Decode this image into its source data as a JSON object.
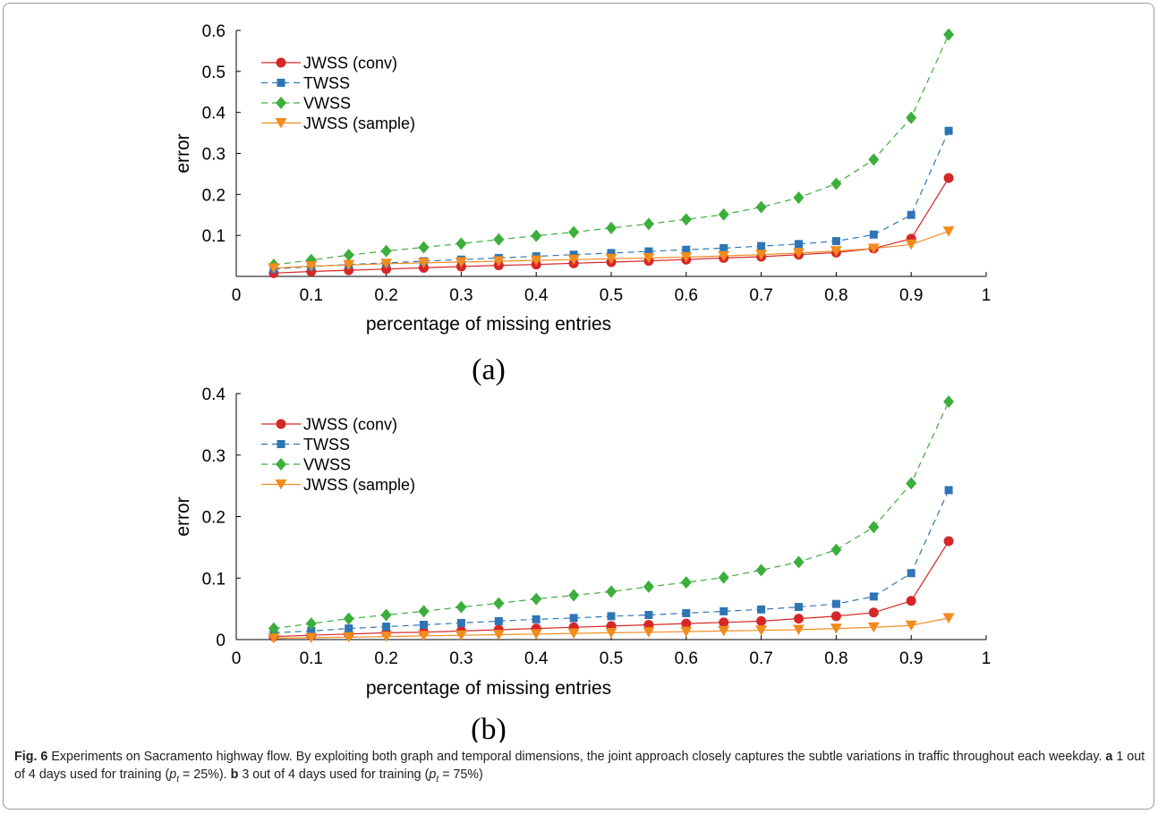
{
  "chart_data": [
    {
      "type": "line",
      "panel_label": "(a)",
      "xlabel": "percentage of missing entries",
      "ylabel": "error",
      "xlim": [
        0,
        1
      ],
      "ylim": [
        0,
        0.6
      ],
      "xticks": [
        "0",
        "0.1",
        "0.2",
        "0.3",
        "0.4",
        "0.5",
        "0.6",
        "0.7",
        "0.8",
        "0.9",
        "1"
      ],
      "yticks": [
        "0.1",
        "0.2",
        "0.3",
        "0.4",
        "0.5",
        "0.6"
      ],
      "grid": false,
      "legend_position": "top-left",
      "x": [
        0.05,
        0.1,
        0.15,
        0.2,
        0.25,
        0.3,
        0.35,
        0.4,
        0.45,
        0.5,
        0.55,
        0.6,
        0.65,
        0.7,
        0.75,
        0.8,
        0.85,
        0.9,
        0.95
      ],
      "series": [
        {
          "name": "JWSS (conv)",
          "color": "#d62728",
          "marker": "circle",
          "dash": "solid",
          "values": [
            0.008,
            0.012,
            0.015,
            0.018,
            0.021,
            0.024,
            0.027,
            0.029,
            0.032,
            0.035,
            0.038,
            0.041,
            0.045,
            0.048,
            0.053,
            0.058,
            0.068,
            0.092,
            0.24
          ]
        },
        {
          "name": "TWSS",
          "color": "#2e75b6",
          "marker": "square",
          "dash": "dashed",
          "values": [
            0.018,
            0.024,
            0.029,
            0.033,
            0.037,
            0.041,
            0.045,
            0.049,
            0.053,
            0.057,
            0.061,
            0.065,
            0.069,
            0.074,
            0.079,
            0.086,
            0.102,
            0.15,
            0.355
          ]
        },
        {
          "name": "VWSS",
          "color": "#3cae3c",
          "marker": "diamond",
          "dash": "dashed",
          "values": [
            0.028,
            0.04,
            0.052,
            0.062,
            0.071,
            0.08,
            0.09,
            0.099,
            0.108,
            0.118,
            0.128,
            0.139,
            0.151,
            0.169,
            0.192,
            0.226,
            0.285,
            0.387,
            0.59
          ]
        },
        {
          "name": "JWSS (sample)",
          "color": "#f28c1e",
          "marker": "triangle-down",
          "dash": "solid",
          "values": [
            0.02,
            0.025,
            0.028,
            0.031,
            0.033,
            0.035,
            0.037,
            0.039,
            0.041,
            0.043,
            0.045,
            0.047,
            0.05,
            0.053,
            0.057,
            0.062,
            0.068,
            0.078,
            0.11
          ]
        }
      ]
    },
    {
      "type": "line",
      "panel_label": "(b)",
      "xlabel": "percentage of missing entries",
      "ylabel": "error",
      "xlim": [
        0,
        1
      ],
      "ylim": [
        0,
        0.4
      ],
      "xticks": [
        "0",
        "0.1",
        "0.2",
        "0.3",
        "0.4",
        "0.5",
        "0.6",
        "0.7",
        "0.8",
        "0.9",
        "1"
      ],
      "yticks": [
        "0",
        "0.1",
        "0.2",
        "0.3",
        "0.4"
      ],
      "grid": false,
      "legend_position": "top-left",
      "x": [
        0.05,
        0.1,
        0.15,
        0.2,
        0.25,
        0.3,
        0.35,
        0.4,
        0.45,
        0.5,
        0.55,
        0.6,
        0.65,
        0.7,
        0.75,
        0.8,
        0.85,
        0.9,
        0.95
      ],
      "series": [
        {
          "name": "JWSS (conv)",
          "color": "#d62728",
          "marker": "circle",
          "dash": "solid",
          "values": [
            0.005,
            0.007,
            0.009,
            0.011,
            0.012,
            0.014,
            0.016,
            0.018,
            0.02,
            0.022,
            0.024,
            0.026,
            0.028,
            0.03,
            0.034,
            0.038,
            0.044,
            0.063,
            0.16
          ]
        },
        {
          "name": "TWSS",
          "color": "#2e75b6",
          "marker": "square",
          "dash": "dashed",
          "values": [
            0.011,
            0.014,
            0.018,
            0.021,
            0.024,
            0.027,
            0.03,
            0.033,
            0.035,
            0.038,
            0.04,
            0.043,
            0.046,
            0.049,
            0.053,
            0.058,
            0.07,
            0.108,
            0.243
          ]
        },
        {
          "name": "VWSS",
          "color": "#3cae3c",
          "marker": "diamond",
          "dash": "dashed",
          "values": [
            0.018,
            0.026,
            0.034,
            0.04,
            0.046,
            0.053,
            0.059,
            0.066,
            0.072,
            0.078,
            0.086,
            0.093,
            0.101,
            0.113,
            0.126,
            0.146,
            0.183,
            0.254,
            0.387
          ]
        },
        {
          "name": "JWSS (sample)",
          "color": "#f28c1e",
          "marker": "triangle-down",
          "dash": "solid",
          "values": [
            0.002,
            0.003,
            0.004,
            0.005,
            0.006,
            0.007,
            0.008,
            0.009,
            0.01,
            0.011,
            0.012,
            0.013,
            0.014,
            0.015,
            0.016,
            0.018,
            0.02,
            0.023,
            0.035
          ]
        }
      ]
    }
  ],
  "caption": {
    "fig_label": "Fig. 6",
    "text": "Experiments on Sacramento highway flow. By exploiting both graph and temporal dimensions, the joint approach closely captures the subtle variations in traffic throughout each weekday.",
    "part_a_label": "a",
    "part_a_text": "1 out of 4 days used for training (",
    "part_a_p": "p",
    "part_a_sub": "t",
    "part_a_eq": " = 25%).",
    "part_b_label": "b",
    "part_b_text": "3 out of 4 days used for training (",
    "part_b_p": "p",
    "part_b_sub": "t",
    "part_b_eq": " = 75%)"
  }
}
